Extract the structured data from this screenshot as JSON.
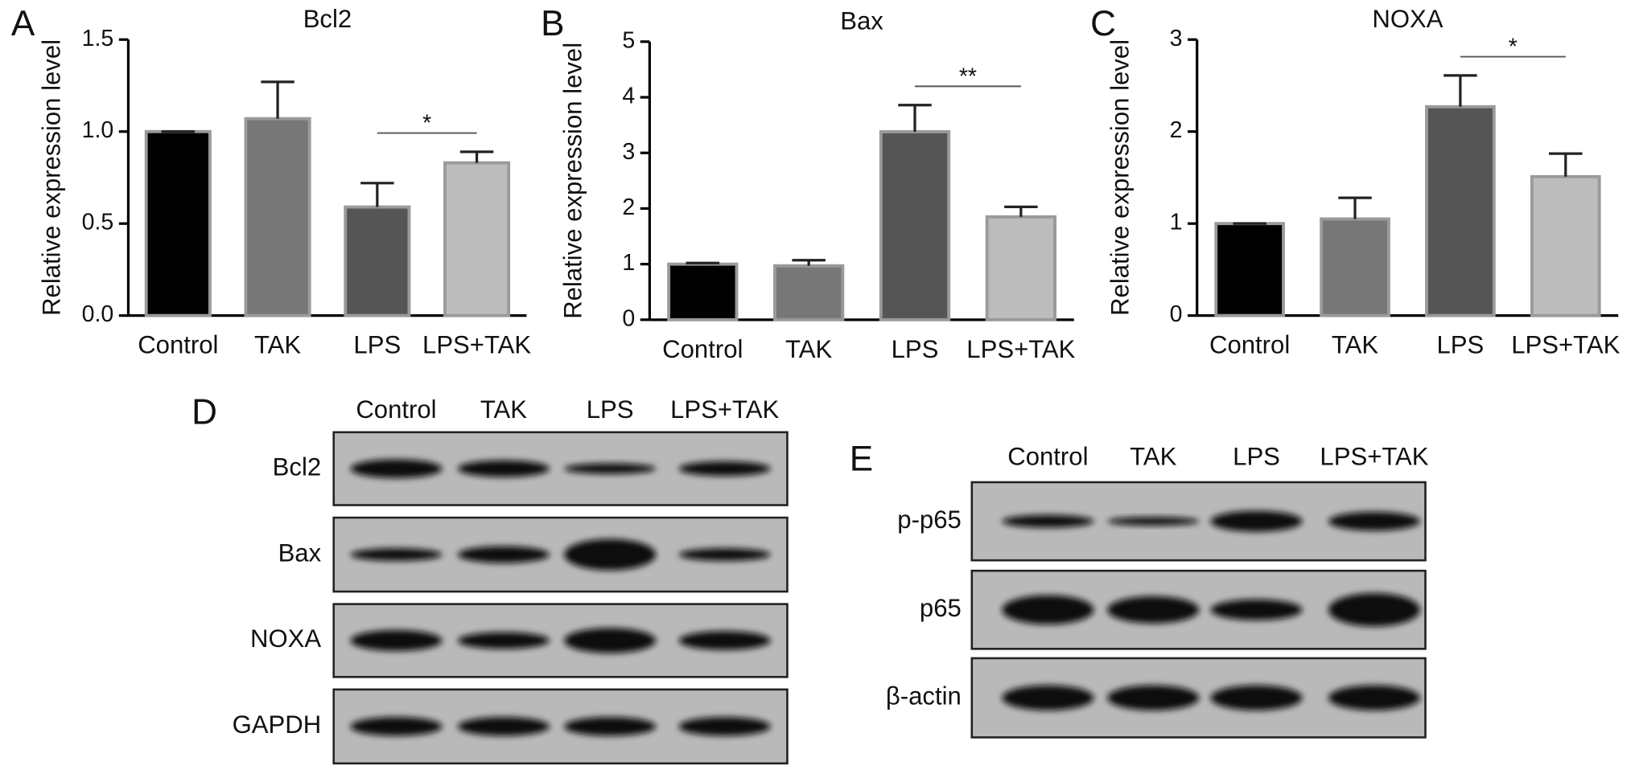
{
  "panel_labels": [
    "A",
    "B",
    "C",
    "D",
    "E"
  ],
  "chart_data": [
    {
      "type": "bar",
      "title": "Bcl2",
      "ylabel": "Relative expression level",
      "categories": [
        "Control",
        "TAK",
        "LPS",
        "LPS+TAK"
      ],
      "values": [
        1.0,
        1.07,
        0.59,
        0.83
      ],
      "errors": [
        0,
        0.2,
        0.13,
        0.06
      ],
      "colors": [
        "#000000",
        "#777777",
        "#555555",
        "#bcbcbc"
      ],
      "ylim": [
        0,
        1.5
      ],
      "yticks": [
        {
          "value": 0,
          "label": "0.0"
        },
        {
          "value": 0.5,
          "label": "0.5"
        },
        {
          "value": 1,
          "label": "1.0"
        },
        {
          "value": 1.5,
          "label": "1.5"
        }
      ],
      "significance": "*"
    },
    {
      "type": "bar",
      "title": "Bax",
      "ylabel": "Relative expression level",
      "categories": [
        "Control",
        "TAK",
        "LPS",
        "LPS+TAK"
      ],
      "values": [
        1.0,
        0.97,
        3.38,
        1.85
      ],
      "errors": [
        0.02,
        0.1,
        0.48,
        0.18
      ],
      "colors": [
        "#000000",
        "#777777",
        "#555555",
        "#bcbcbc"
      ],
      "ylim": [
        0,
        5
      ],
      "yticks": [
        0,
        1,
        2,
        3,
        4,
        5
      ],
      "significance": "**"
    },
    {
      "type": "bar",
      "title": "NOXA",
      "ylabel": "Relative expression level",
      "categories": [
        "Control",
        "TAK",
        "LPS",
        "LPS+TAK"
      ],
      "values": [
        1.0,
        1.05,
        2.27,
        1.51
      ],
      "errors": [
        0,
        0.23,
        0.34,
        0.25
      ],
      "colors": [
        "#000000",
        "#777777",
        "#555555",
        "#bcbcbc"
      ],
      "ylim": [
        0,
        3
      ],
      "yticks": [
        0,
        1,
        2,
        3
      ],
      "significance": "*"
    }
  ],
  "blots": [
    {
      "columns": [
        "Control",
        "TAK",
        "LPS",
        "LPS+TAK"
      ],
      "rows": [
        "Bcl2",
        "Bax",
        "NOXA",
        "GAPDH"
      ]
    },
    {
      "columns": [
        "Control",
        "TAK",
        "LPS",
        "LPS+TAK"
      ],
      "rows": [
        "p-p65",
        "p65",
        "β-actin"
      ]
    }
  ]
}
